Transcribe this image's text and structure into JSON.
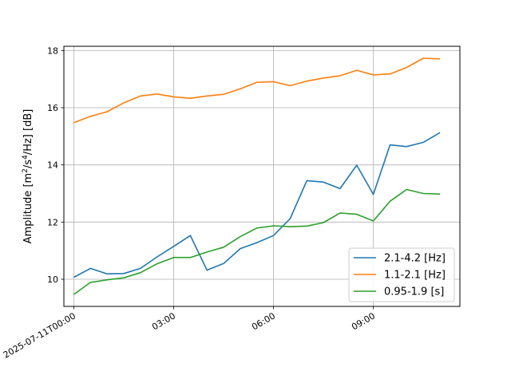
{
  "chart_data": {
    "type": "line",
    "ylabel_main": "Amplitude [m",
    "ylabel_sup1": "2",
    "ylabel_mid": "/s",
    "ylabel_sup2": "4",
    "ylabel_end": "/Hz] [dB]",
    "xlim_hours": [
      -0.3,
      11.6
    ],
    "ylim": [
      9.05,
      18.15
    ],
    "grid": true,
    "legend_position": "lower-right",
    "yticks": [
      10,
      12,
      14,
      16,
      18
    ],
    "ytick_labels": [
      "10",
      "12",
      "14",
      "16",
      "18"
    ],
    "xticks": [
      {
        "hour": 0,
        "label": "2025-07-11T00:00"
      },
      {
        "hour": 3,
        "label": "03:00"
      },
      {
        "hour": 6,
        "label": "06:00"
      },
      {
        "hour": 9,
        "label": "09:00"
      }
    ],
    "x_hours": [
      0,
      0.5,
      1,
      1.5,
      2,
      2.5,
      3,
      3.5,
      4,
      4.5,
      5,
      5.5,
      6,
      6.5,
      7,
      7.5,
      8,
      8.5,
      9,
      9.5,
      10,
      10.5,
      11
    ],
    "series": [
      {
        "name": "2.1-4.2 [Hz]",
        "color": "#1f77b4",
        "values": [
          10.07,
          10.38,
          10.19,
          10.2,
          10.38,
          10.78,
          11.15,
          11.53,
          10.32,
          10.55,
          11.07,
          11.28,
          11.53,
          12.12,
          13.45,
          13.4,
          13.17,
          13.99,
          12.97,
          14.7,
          14.64,
          14.79,
          15.13
        ]
      },
      {
        "name": "1.1-2.1 [Hz]",
        "color": "#ff7f0e",
        "values": [
          15.48,
          15.7,
          15.86,
          16.17,
          16.41,
          16.48,
          16.38,
          16.33,
          16.41,
          16.47,
          16.66,
          16.89,
          16.91,
          16.77,
          16.93,
          17.04,
          17.12,
          17.31,
          17.15,
          17.18,
          17.41,
          17.73,
          17.71
        ]
      },
      {
        "name": "0.95-1.9 [s]",
        "color": "#2ca02c",
        "values": [
          9.47,
          9.89,
          9.98,
          10.05,
          10.23,
          10.54,
          10.76,
          10.76,
          10.95,
          11.12,
          11.49,
          11.79,
          11.87,
          11.84,
          11.86,
          11.98,
          12.32,
          12.27,
          12.04,
          12.73,
          13.14,
          13.0,
          12.98
        ]
      }
    ]
  }
}
